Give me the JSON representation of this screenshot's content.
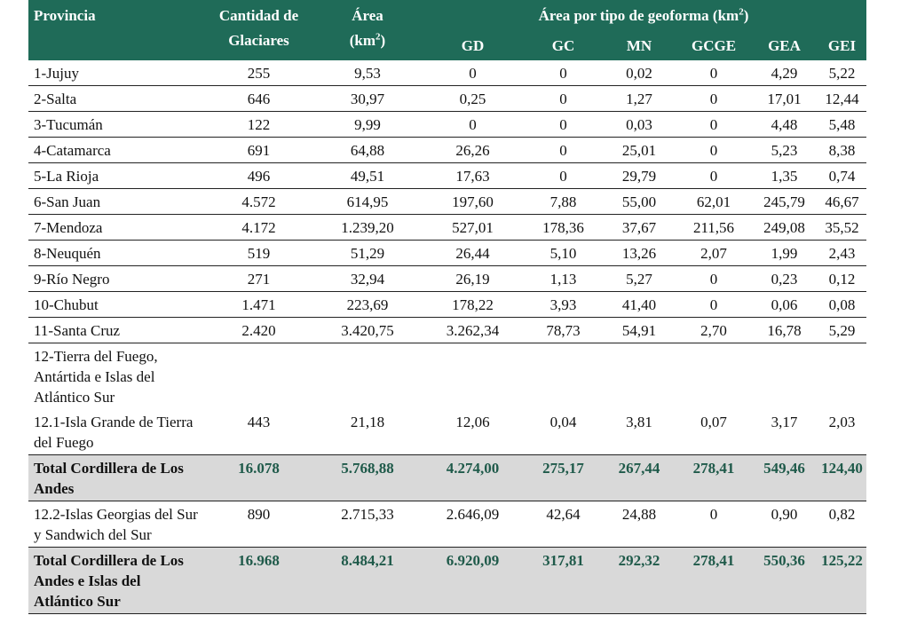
{
  "header": {
    "provincia": "Provincia",
    "cantidad_1": "Cantidad de",
    "cantidad_2": "Glaciares",
    "area_1": "Área",
    "area_2": "(km",
    "area_sup": "2",
    "area_close": ")",
    "group_label": "Área por tipo de geoforma (km",
    "group_sup": "2",
    "group_close": ")",
    "sub": [
      "GD",
      "GC",
      "MN",
      "GCGE",
      "GEA",
      "GEI"
    ]
  },
  "rows": [
    {
      "prov": "1-Jujuy",
      "vals": [
        "255",
        "9,53",
        "0",
        "0",
        "0,02",
        "0",
        "4,29",
        "5,22"
      ]
    },
    {
      "prov": "2-Salta",
      "vals": [
        "646",
        "30,97",
        "0,25",
        "0",
        "1,27",
        "0",
        "17,01",
        "12,44"
      ]
    },
    {
      "prov": "3-Tucumán",
      "vals": [
        "122",
        "9,99",
        "0",
        "0",
        "0,03",
        "0",
        "4,48",
        "5,48"
      ]
    },
    {
      "prov": "4-Catamarca",
      "vals": [
        "691",
        "64,88",
        "26,26",
        "0",
        "25,01",
        "0",
        "5,23",
        "8,38"
      ]
    },
    {
      "prov": "5-La Rioja",
      "vals": [
        "496",
        "49,51",
        "17,63",
        "0",
        "29,79",
        "0",
        "1,35",
        "0,74"
      ]
    },
    {
      "prov": "6-San Juan",
      "vals": [
        "4.572",
        "614,95",
        "197,60",
        "7,88",
        "55,00",
        "62,01",
        "245,79",
        "46,67"
      ]
    },
    {
      "prov": "7-Mendoza",
      "vals": [
        "4.172",
        "1.239,20",
        "527,01",
        "178,36",
        "37,67",
        "211,56",
        "249,08",
        "35,52"
      ]
    },
    {
      "prov": "8-Neuquén",
      "vals": [
        "519",
        "51,29",
        "26,44",
        "5,10",
        "13,26",
        "2,07",
        "1,99",
        "2,43"
      ]
    },
    {
      "prov": "9-Río Negro",
      "vals": [
        "271",
        "32,94",
        "26,19",
        "1,13",
        "5,27",
        "0",
        "0,23",
        "0,12"
      ]
    },
    {
      "prov": "10-Chubut",
      "vals": [
        "1.471",
        "223,69",
        "178,22",
        "3,93",
        "41,40",
        "0",
        "0,06",
        "0,08"
      ]
    },
    {
      "prov": "11-Santa Cruz",
      "vals": [
        "2.420",
        "3.420,75",
        "3.262,34",
        "78,73",
        "54,91",
        "2,70",
        "16,78",
        "5,29"
      ]
    },
    {
      "prov": "12-Tierra del Fuego, Antártida e Islas del Atlántico Sur",
      "vals": [
        "",
        "",
        "",
        "",
        "",
        "",
        "",
        ""
      ]
    },
    {
      "prov": "12.1-Isla Grande de Tierra del Fuego",
      "vals": [
        "443",
        "21,18",
        "12,06",
        "0,04",
        "3,81",
        "0,07",
        "3,17",
        "2,03"
      ]
    },
    {
      "prov": "Total Cordillera de Los Andes",
      "vals": [
        "16.078",
        "5.768,88",
        "4.274,00",
        "275,17",
        "267,44",
        "278,41",
        "549,46",
        "124,40"
      ]
    },
    {
      "prov": "12.2-Islas Georgias del Sur y Sandwich del Sur",
      "vals": [
        "890",
        "2.715,33",
        "2.646,09",
        "42,64",
        "24,88",
        "0",
        "0,90",
        "0,82"
      ]
    },
    {
      "prov": "Total Cordillera de Los Andes e Islas del Atlántico Sur",
      "vals": [
        "16.968",
        "8.484,21",
        "6.920,09",
        "317,81",
        "292,32",
        "278,41",
        "550,36",
        "125,22"
      ]
    }
  ]
}
